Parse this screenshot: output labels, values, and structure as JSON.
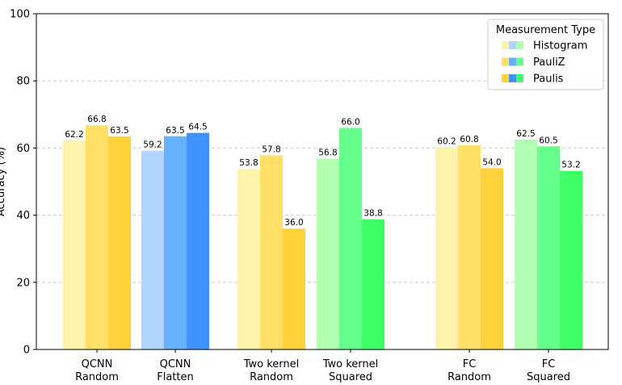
{
  "chart_data": {
    "type": "bar",
    "title": "",
    "xlabel": "",
    "ylabel": "Accuracy (%)",
    "ylim": [
      0,
      100
    ],
    "yticks": [
      0,
      20,
      40,
      60,
      80,
      100
    ],
    "grid": "y-dashed",
    "legend_position": "top-right",
    "legend_title": "Measurement Type",
    "groups": [
      {
        "label": [
          "QCNN",
          "Random"
        ],
        "palette": "yellow",
        "values": [
          62.2,
          66.8,
          63.5
        ]
      },
      {
        "label": [
          "QCNN",
          "Flatten"
        ],
        "palette": "blue",
        "values": [
          59.2,
          63.5,
          64.5
        ]
      },
      {
        "label": [
          "Two kernel",
          "Random"
        ],
        "palette": "yellow",
        "values": [
          53.8,
          57.8,
          36.0
        ]
      },
      {
        "label": [
          "Two kernel",
          "Squared"
        ],
        "palette": "green",
        "values": [
          56.8,
          66.0,
          38.8
        ]
      },
      {
        "label": [
          "FC",
          "Random"
        ],
        "palette": "yellow",
        "values": [
          60.2,
          60.8,
          54.0
        ]
      },
      {
        "label": [
          "FC",
          "Squared"
        ],
        "palette": "green",
        "values": [
          62.5,
          60.5,
          53.2
        ]
      }
    ],
    "series": [
      {
        "name": "Histogram"
      },
      {
        "name": "PauliZ"
      },
      {
        "name": "Paulis"
      }
    ],
    "palettes": {
      "yellow": [
        "#fff2aa",
        "#ffdf66",
        "#ffd23c"
      ],
      "blue": [
        "#b1d3ff",
        "#66b0ff",
        "#3e91ff"
      ],
      "green": [
        "#b1ffb1",
        "#66ff8c",
        "#3eff66"
      ]
    }
  }
}
